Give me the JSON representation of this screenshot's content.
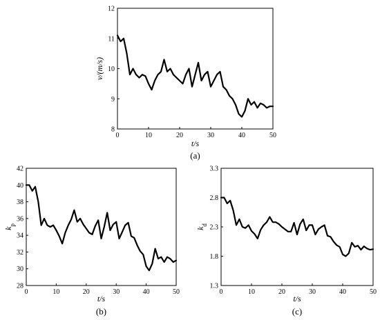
{
  "chart_data": [
    {
      "type": "line",
      "caption": "(a)",
      "xlabel": "t/s",
      "ylabel": "v/(m/s)",
      "xlim": [
        0,
        50
      ],
      "ylim": [
        8,
        12
      ],
      "xticks": [
        0,
        10,
        20,
        30,
        40,
        50
      ],
      "yticks": [
        8,
        9,
        10,
        11,
        12
      ],
      "grid": false,
      "series": [
        {
          "x": [
            0,
            1,
            2,
            3,
            4,
            5,
            6,
            7,
            8,
            9,
            10,
            11,
            12,
            13,
            14,
            15,
            16,
            17,
            18,
            19,
            20,
            21,
            22,
            23,
            24,
            25,
            26,
            27,
            28,
            29,
            30,
            31,
            32,
            33,
            34,
            35,
            36,
            37,
            38,
            39,
            40,
            41,
            42,
            43,
            44,
            45,
            46,
            47,
            48,
            49,
            50
          ],
          "values": [
            11.1,
            10.9,
            11.0,
            10.5,
            9.8,
            10.0,
            9.8,
            9.7,
            9.8,
            9.75,
            9.5,
            9.3,
            9.6,
            9.8,
            9.9,
            10.3,
            9.9,
            10.0,
            9.8,
            9.7,
            9.6,
            9.5,
            9.8,
            10.0,
            9.4,
            9.8,
            10.2,
            9.6,
            9.8,
            9.9,
            9.4,
            9.6,
            9.8,
            9.9,
            9.4,
            9.3,
            9.1,
            9.0,
            8.8,
            8.5,
            8.4,
            8.6,
            9.0,
            8.8,
            8.9,
            8.7,
            8.85,
            8.8,
            8.7,
            8.75,
            8.75
          ]
        }
      ]
    },
    {
      "type": "line",
      "caption": "(b)",
      "xlabel": "t/s",
      "ylabel": "k",
      "ylabel_sub": "p",
      "xlim": [
        0,
        50
      ],
      "ylim": [
        28,
        42
      ],
      "xticks": [
        0,
        10,
        20,
        30,
        40,
        50
      ],
      "yticks": [
        28,
        30,
        32,
        34,
        36,
        38,
        40,
        42
      ],
      "grid": false,
      "series": [
        {
          "x": [
            0,
            1,
            2,
            3,
            4,
            5,
            6,
            7,
            8,
            9,
            10,
            11,
            12,
            13,
            14,
            15,
            16,
            17,
            18,
            19,
            20,
            21,
            22,
            23,
            24,
            25,
            26,
            27,
            28,
            29,
            30,
            31,
            32,
            33,
            34,
            35,
            36,
            37,
            38,
            39,
            40,
            41,
            42,
            43,
            44,
            45,
            46,
            47,
            48,
            49,
            50
          ],
          "values": [
            40.0,
            40.0,
            39.3,
            39.8,
            38.0,
            35.2,
            36.0,
            35.2,
            35.0,
            35.2,
            34.6,
            33.9,
            33.0,
            34.3,
            35.2,
            35.9,
            37.0,
            35.6,
            36.0,
            35.3,
            34.8,
            34.3,
            34.1,
            35.1,
            35.8,
            33.6,
            35.0,
            36.7,
            34.6,
            35.3,
            35.6,
            33.6,
            34.4,
            35.2,
            35.5,
            33.9,
            33.7,
            32.8,
            32.1,
            31.7,
            30.3,
            29.8,
            30.6,
            32.4,
            31.2,
            31.4,
            30.8,
            31.4,
            31.2,
            30.8,
            31.0
          ]
        }
      ]
    },
    {
      "type": "line",
      "caption": "(c)",
      "xlabel": "t/s",
      "ylabel": "k",
      "ylabel_sub": "d",
      "xlim": [
        0,
        50
      ],
      "ylim": [
        1.3,
        3.3
      ],
      "xticks": [
        0,
        10,
        20,
        30,
        40,
        50
      ],
      "yticks": [
        1.3,
        1.8,
        2.3,
        2.8,
        3.3
      ],
      "grid": false,
      "series": [
        {
          "x": [
            0,
            1,
            2,
            3,
            4,
            5,
            6,
            7,
            8,
            9,
            10,
            11,
            12,
            13,
            14,
            15,
            16,
            17,
            18,
            19,
            20,
            21,
            22,
            23,
            24,
            25,
            26,
            27,
            28,
            29,
            30,
            31,
            32,
            33,
            34,
            35,
            36,
            37,
            38,
            39,
            40,
            41,
            42,
            43,
            44,
            45,
            46,
            47,
            48,
            49,
            50
          ],
          "values": [
            2.8,
            2.8,
            2.7,
            2.75,
            2.58,
            2.33,
            2.43,
            2.3,
            2.28,
            2.33,
            2.23,
            2.18,
            2.1,
            2.25,
            2.33,
            2.38,
            2.47,
            2.38,
            2.38,
            2.35,
            2.3,
            2.26,
            2.22,
            2.22,
            2.37,
            2.17,
            2.35,
            2.43,
            2.24,
            2.33,
            2.33,
            2.17,
            2.26,
            2.3,
            2.33,
            2.15,
            2.13,
            2.05,
            1.99,
            1.96,
            1.83,
            1.8,
            1.85,
            2.03,
            1.96,
            1.98,
            1.91,
            1.97,
            1.93,
            1.91,
            1.92
          ]
        }
      ]
    }
  ]
}
